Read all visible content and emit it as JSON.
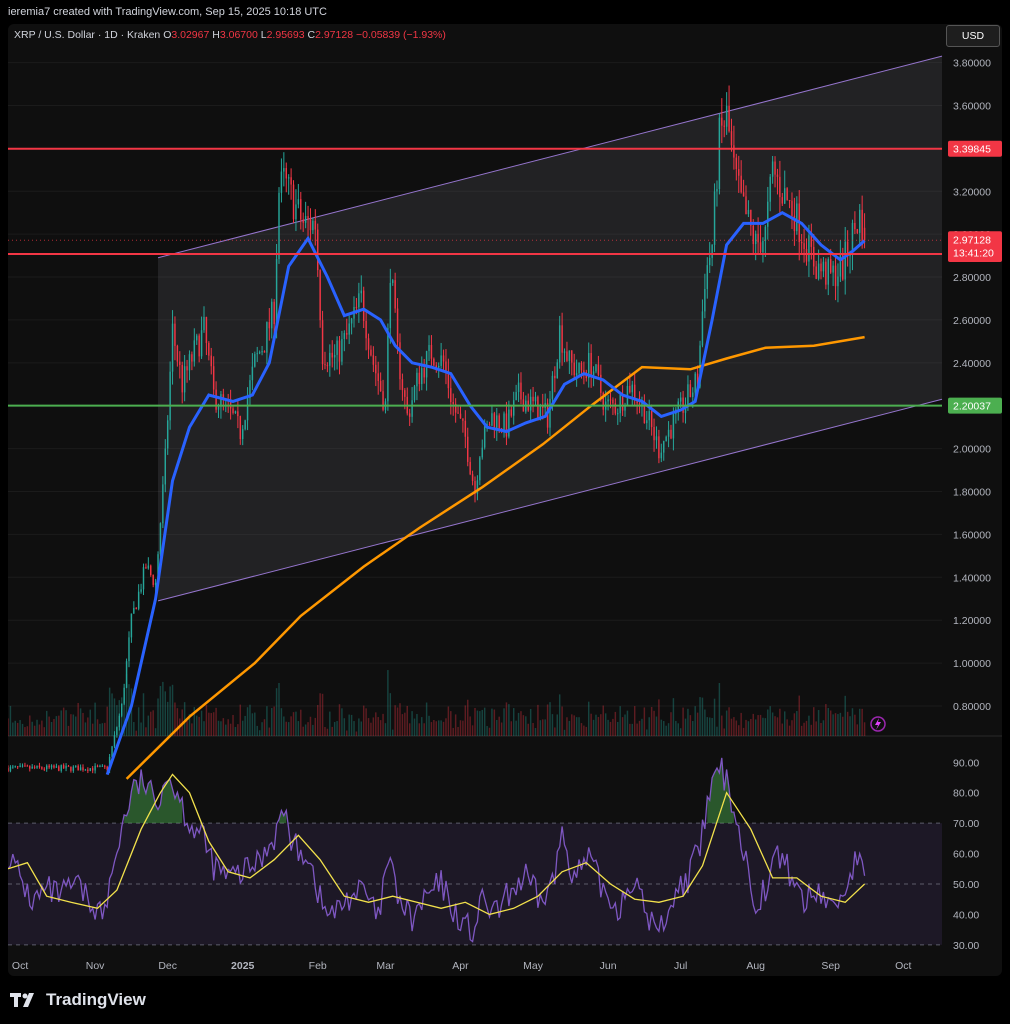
{
  "header": {
    "author_line": "ieremia7 created with TradingView.com, Sep 15, 2025 10:18 UTC",
    "symbol": "XRP / U.S. Dollar · 1D · Kraken",
    "o_label": "O",
    "o_value": "3.02967",
    "h_label": "H",
    "h_value": "3.06700",
    "l_label": "L",
    "l_value": "2.95693",
    "c_label": "C",
    "c_value": "2.97128",
    "change": "−0.05839 (−1.93%)",
    "currency": "USD"
  },
  "brand": "TradingView",
  "colors": {
    "up": "#26a69a",
    "down": "#f23645",
    "ema_fast": "#2962ff",
    "ema_slow": "#ff9800",
    "level_red": "#f23645",
    "level_green": "#4caf50",
    "rsi": "#7e57c2",
    "rsi_ma": "#f2e14c",
    "channel": "#9575cd"
  },
  "chart_data": [
    {
      "type": "candlestick",
      "title": "XRP / U.S. Dollar · 1D · Kraken",
      "y_axis_ticks": [
        "3.80000",
        "3.60000",
        "3.40000",
        "3.20000",
        "3.00000",
        "2.80000",
        "2.60000",
        "2.40000",
        "2.20000",
        "2.00000",
        "1.80000",
        "1.60000",
        "1.40000",
        "1.20000",
        "1.00000",
        "0.80000"
      ],
      "ylim": [
        0.66,
        3.84
      ],
      "x_axis_ticks": [
        "Oct",
        "Nov",
        "Dec",
        "2025",
        "Feb",
        "Mar",
        "Apr",
        "May",
        "Jun",
        "Jul",
        "Aug",
        "Sep",
        "Oct"
      ],
      "x_range": [
        "2024-09-26",
        "2025-10-17"
      ],
      "last_bar": "2025-09-15",
      "horizontal_levels": [
        {
          "value": 3.39845,
          "label": "3.39845",
          "color": "#f23645"
        },
        {
          "value": 2.90722,
          "label": "2.90722",
          "color": "#f23645"
        },
        {
          "value": 2.20037,
          "label": "2.20037",
          "color": "#4caf50"
        }
      ],
      "price_label": {
        "value": 2.97128,
        "label": "2.97128",
        "countdown": "13:41:20"
      },
      "channel": {
        "upper": [
          [
            "2024-11-27",
            2.89
          ],
          [
            "2025-10-17",
            3.83
          ]
        ],
        "lower": [
          [
            "2024-11-27",
            1.29
          ],
          [
            "2025-10-17",
            2.23
          ]
        ]
      },
      "anchor_points": [
        [
          "2024-11-06",
          0.51
        ],
        [
          "2024-11-12",
          0.8
        ],
        [
          "2024-11-16",
          1.2
        ],
        [
          "2024-11-22",
          1.45
        ],
        [
          "2024-11-26",
          1.37
        ],
        [
          "2024-11-30",
          1.95
        ],
        [
          "2024-12-03",
          2.55
        ],
        [
          "2024-12-07",
          2.3
        ],
        [
          "2024-12-12",
          2.45
        ],
        [
          "2024-12-16",
          2.55
        ],
        [
          "2024-12-20",
          2.25
        ],
        [
          "2024-12-26",
          2.18
        ],
        [
          "2024-12-31",
          2.08
        ],
        [
          "2025-01-06",
          2.4
        ],
        [
          "2025-01-10",
          2.5
        ],
        [
          "2025-01-14",
          2.65
        ],
        [
          "2025-01-16",
          3.2
        ],
        [
          "2025-01-18",
          3.25
        ],
        [
          "2025-01-22",
          3.15
        ],
        [
          "2025-01-26",
          3.05
        ],
        [
          "2025-01-31",
          3.05
        ],
        [
          "2025-02-03",
          2.45
        ],
        [
          "2025-02-08",
          2.42
        ],
        [
          "2025-02-13",
          2.52
        ],
        [
          "2025-02-19",
          2.7
        ],
        [
          "2025-02-24",
          2.4
        ],
        [
          "2025-03-01",
          2.2
        ],
        [
          "2025-03-03",
          2.85
        ],
        [
          "2025-03-06",
          2.45
        ],
        [
          "2025-03-10",
          2.15
        ],
        [
          "2025-03-15",
          2.35
        ],
        [
          "2025-03-20",
          2.45
        ],
        [
          "2025-03-25",
          2.4
        ],
        [
          "2025-03-29",
          2.2
        ],
        [
          "2025-04-03",
          2.05
        ],
        [
          "2025-04-07",
          1.8
        ],
        [
          "2025-04-09",
          2.0
        ],
        [
          "2025-04-14",
          2.15
        ],
        [
          "2025-04-20",
          2.1
        ],
        [
          "2025-04-25",
          2.25
        ],
        [
          "2025-05-01",
          2.2
        ],
        [
          "2025-05-07",
          2.15
        ],
        [
          "2025-05-12",
          2.55
        ],
        [
          "2025-05-16",
          2.4
        ],
        [
          "2025-05-20",
          2.35
        ],
        [
          "2025-05-25",
          2.4
        ],
        [
          "2025-05-31",
          2.2
        ],
        [
          "2025-06-05",
          2.2
        ],
        [
          "2025-06-10",
          2.3
        ],
        [
          "2025-06-16",
          2.18
        ],
        [
          "2025-06-22",
          2.0
        ],
        [
          "2025-06-27",
          2.1
        ],
        [
          "2025-07-02",
          2.2
        ],
        [
          "2025-07-08",
          2.32
        ],
        [
          "2025-07-11",
          2.8
        ],
        [
          "2025-07-14",
          2.95
        ],
        [
          "2025-07-17",
          3.45
        ],
        [
          "2025-07-20",
          3.55
        ],
        [
          "2025-07-23",
          3.3
        ],
        [
          "2025-07-26",
          3.15
        ],
        [
          "2025-08-01",
          2.95
        ],
        [
          "2025-08-05",
          3.0
        ],
        [
          "2025-08-08",
          3.3
        ],
        [
          "2025-08-12",
          3.2
        ],
        [
          "2025-08-17",
          3.1
        ],
        [
          "2025-08-22",
          2.95
        ],
        [
          "2025-08-26",
          2.85
        ],
        [
          "2025-09-01",
          2.8
        ],
        [
          "2025-09-06",
          2.85
        ],
        [
          "2025-09-10",
          3.0
        ],
        [
          "2025-09-13",
          3.08
        ],
        [
          "2025-09-15",
          2.97
        ]
      ],
      "ema_fast_points": [
        [
          "2024-11-06",
          0.48
        ],
        [
          "2024-11-16",
          0.8
        ],
        [
          "2024-11-26",
          1.3
        ],
        [
          "2024-12-03",
          1.85
        ],
        [
          "2024-12-10",
          2.1
        ],
        [
          "2024-12-18",
          2.25
        ],
        [
          "2024-12-28",
          2.22
        ],
        [
          "2025-01-05",
          2.25
        ],
        [
          "2025-01-12",
          2.4
        ],
        [
          "2025-01-20",
          2.85
        ],
        [
          "2025-01-28",
          2.98
        ],
        [
          "2025-02-05",
          2.8
        ],
        [
          "2025-02-12",
          2.62
        ],
        [
          "2025-02-20",
          2.65
        ],
        [
          "2025-02-27",
          2.6
        ],
        [
          "2025-03-05",
          2.48
        ],
        [
          "2025-03-12",
          2.4
        ],
        [
          "2025-03-20",
          2.38
        ],
        [
          "2025-03-28",
          2.35
        ],
        [
          "2025-04-05",
          2.2
        ],
        [
          "2025-04-12",
          2.1
        ],
        [
          "2025-04-20",
          2.08
        ],
        [
          "2025-04-28",
          2.12
        ],
        [
          "2025-05-06",
          2.15
        ],
        [
          "2025-05-14",
          2.3
        ],
        [
          "2025-05-22",
          2.35
        ],
        [
          "2025-05-30",
          2.32
        ],
        [
          "2025-06-07",
          2.25
        ],
        [
          "2025-06-15",
          2.22
        ],
        [
          "2025-06-23",
          2.15
        ],
        [
          "2025-07-01",
          2.18
        ],
        [
          "2025-07-07",
          2.22
        ],
        [
          "2025-07-14",
          2.6
        ],
        [
          "2025-07-20",
          2.95
        ],
        [
          "2025-07-27",
          3.05
        ],
        [
          "2025-08-04",
          3.05
        ],
        [
          "2025-08-12",
          3.1
        ],
        [
          "2025-08-20",
          3.05
        ],
        [
          "2025-08-28",
          2.95
        ],
        [
          "2025-09-05",
          2.88
        ],
        [
          "2025-09-10",
          2.92
        ],
        [
          "2025-09-15",
          2.97
        ]
      ],
      "ema_slow_points": [
        [
          "2024-11-14",
          0.46
        ],
        [
          "2024-12-10",
          0.75
        ],
        [
          "2025-01-06",
          1.0
        ],
        [
          "2025-01-25",
          1.22
        ],
        [
          "2025-02-20",
          1.45
        ],
        [
          "2025-03-15",
          1.63
        ],
        [
          "2025-04-10",
          1.82
        ],
        [
          "2025-05-05",
          2.02
        ],
        [
          "2025-05-25",
          2.2
        ],
        [
          "2025-06-15",
          2.38
        ],
        [
          "2025-07-05",
          2.37
        ],
        [
          "2025-07-20",
          2.42
        ],
        [
          "2025-08-05",
          2.47
        ],
        [
          "2025-08-25",
          2.48
        ],
        [
          "2025-09-15",
          2.52
        ]
      ]
    },
    {
      "type": "line",
      "y_axis_ticks": [
        "90.00",
        "80.00",
        "70.00",
        "60.00",
        "50.00",
        "40.00",
        "30.00"
      ],
      "ylim": [
        27,
        96
      ],
      "band": [
        30,
        70
      ],
      "midline": 50,
      "rsi_points": [
        [
          "2024-09-26",
          60
        ],
        [
          "2024-10-01",
          52
        ],
        [
          "2024-10-06",
          44
        ],
        [
          "2024-10-12",
          48
        ],
        [
          "2024-10-18",
          46
        ],
        [
          "2024-10-24",
          50
        ],
        [
          "2024-10-30",
          44
        ],
        [
          "2024-11-05",
          40
        ],
        [
          "2024-11-10",
          62
        ],
        [
          "2024-11-16",
          80
        ],
        [
          "2024-11-21",
          84
        ],
        [
          "2024-11-26",
          76
        ],
        [
          "2024-11-30",
          86
        ],
        [
          "2024-12-04",
          82
        ],
        [
          "2024-12-10",
          70
        ],
        [
          "2024-12-15",
          66
        ],
        [
          "2024-12-20",
          56
        ],
        [
          "2024-12-26",
          52
        ],
        [
          "2025-01-02",
          54
        ],
        [
          "2025-01-08",
          58
        ],
        [
          "2025-01-14",
          66
        ],
        [
          "2025-01-18",
          74
        ],
        [
          "2025-01-22",
          62
        ],
        [
          "2025-01-28",
          60
        ],
        [
          "2025-02-03",
          42
        ],
        [
          "2025-02-08",
          40
        ],
        [
          "2025-02-14",
          46
        ],
        [
          "2025-02-20",
          48
        ],
        [
          "2025-02-26",
          38
        ],
        [
          "2025-03-02",
          58
        ],
        [
          "2025-03-07",
          44
        ],
        [
          "2025-03-12",
          38
        ],
        [
          "2025-03-18",
          46
        ],
        [
          "2025-03-24",
          50
        ],
        [
          "2025-03-30",
          40
        ],
        [
          "2025-04-06",
          34
        ],
        [
          "2025-04-10",
          44
        ],
        [
          "2025-04-16",
          40
        ],
        [
          "2025-04-22",
          48
        ],
        [
          "2025-04-28",
          52
        ],
        [
          "2025-05-04",
          44
        ],
        [
          "2025-05-10",
          52
        ],
        [
          "2025-05-13",
          68
        ],
        [
          "2025-05-18",
          52
        ],
        [
          "2025-05-24",
          58
        ],
        [
          "2025-05-30",
          48
        ],
        [
          "2025-06-05",
          42
        ],
        [
          "2025-06-11",
          52
        ],
        [
          "2025-06-17",
          40
        ],
        [
          "2025-06-22",
          34
        ],
        [
          "2025-06-28",
          46
        ],
        [
          "2025-07-04",
          52
        ],
        [
          "2025-07-09",
          62
        ],
        [
          "2025-07-13",
          80
        ],
        [
          "2025-07-17",
          88
        ],
        [
          "2025-07-21",
          82
        ],
        [
          "2025-07-26",
          64
        ],
        [
          "2025-08-01",
          44
        ],
        [
          "2025-08-06",
          50
        ],
        [
          "2025-08-10",
          60
        ],
        [
          "2025-08-15",
          54
        ],
        [
          "2025-08-21",
          44
        ],
        [
          "2025-08-27",
          48
        ],
        [
          "2025-09-02",
          42
        ],
        [
          "2025-09-08",
          50
        ],
        [
          "2025-09-12",
          60
        ],
        [
          "2025-09-15",
          50
        ]
      ],
      "rsi_ma_points": [
        [
          "2024-09-26",
          55
        ],
        [
          "2024-10-04",
          57
        ],
        [
          "2024-10-12",
          46
        ],
        [
          "2024-10-22",
          44
        ],
        [
          "2024-11-02",
          42
        ],
        [
          "2024-11-10",
          48
        ],
        [
          "2024-11-20",
          68
        ],
        [
          "2024-11-28",
          80
        ],
        [
          "2024-12-03",
          86
        ],
        [
          "2024-12-10",
          80
        ],
        [
          "2024-12-18",
          64
        ],
        [
          "2024-12-26",
          54
        ],
        [
          "2025-01-04",
          52
        ],
        [
          "2025-01-14",
          58
        ],
        [
          "2025-01-24",
          66
        ],
        [
          "2025-02-02",
          58
        ],
        [
          "2025-02-12",
          46
        ],
        [
          "2025-02-22",
          44
        ],
        [
          "2025-03-04",
          46
        ],
        [
          "2025-03-14",
          44
        ],
        [
          "2025-03-24",
          42
        ],
        [
          "2025-04-03",
          44
        ],
        [
          "2025-04-13",
          40
        ],
        [
          "2025-04-23",
          42
        ],
        [
          "2025-05-03",
          46
        ],
        [
          "2025-05-13",
          54
        ],
        [
          "2025-05-23",
          57
        ],
        [
          "2025-06-02",
          50
        ],
        [
          "2025-06-12",
          45
        ],
        [
          "2025-06-22",
          44
        ],
        [
          "2025-07-02",
          46
        ],
        [
          "2025-07-10",
          56
        ],
        [
          "2025-07-20",
          80
        ],
        [
          "2025-07-30",
          68
        ],
        [
          "2025-08-08",
          52
        ],
        [
          "2025-08-18",
          52
        ],
        [
          "2025-08-28",
          46
        ],
        [
          "2025-09-07",
          44
        ],
        [
          "2025-09-15",
          50
        ]
      ]
    }
  ]
}
